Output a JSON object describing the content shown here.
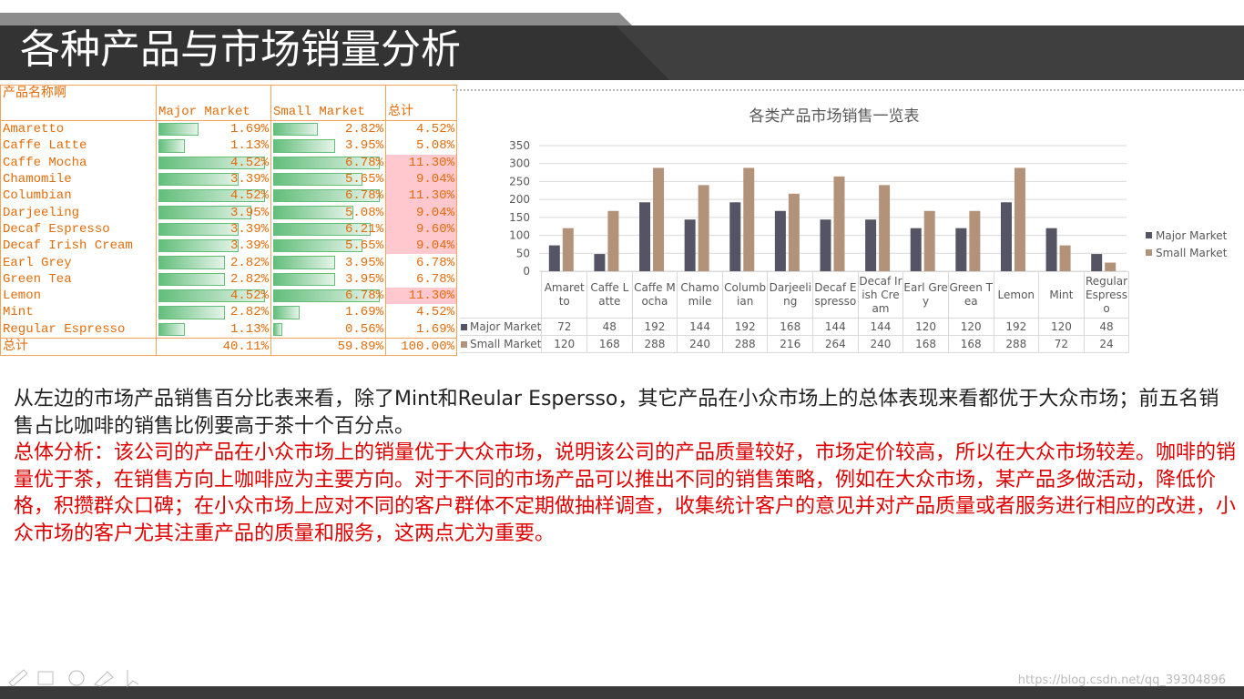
{
  "header": {
    "title": "各种产品与市场销量分析"
  },
  "table": {
    "columns": [
      {
        "label": "产品名称啊"
      },
      {
        "label": "Major Market",
        "data_bars": true
      },
      {
        "label": "Small Market",
        "data_bars": true
      },
      {
        "label": "总计"
      }
    ],
    "rows": [
      {
        "name": "Amaretto",
        "cells": [
          {
            "value": 1.69,
            "label": "1.69%"
          },
          {
            "value": 2.82,
            "label": "2.82%"
          },
          {
            "value": 4.52,
            "label": "4.52%"
          }
        ]
      },
      {
        "name": "Caffe Latte",
        "cells": [
          {
            "value": 1.13,
            "label": "1.13%"
          },
          {
            "value": 3.95,
            "label": "3.95%"
          },
          {
            "value": 5.08,
            "label": "5.08%"
          }
        ]
      },
      {
        "name": "Caffe Mocha",
        "cells": [
          {
            "value": 4.52,
            "label": "4.52%"
          },
          {
            "value": 6.78,
            "label": "6.78%"
          },
          {
            "value": 11.3,
            "label": "11.30%",
            "highlight": true
          }
        ]
      },
      {
        "name": "Chamomile",
        "cells": [
          {
            "value": 3.39,
            "label": "3.39%"
          },
          {
            "value": 5.65,
            "label": "5.65%"
          },
          {
            "value": 9.04,
            "label": "9.04%",
            "highlight": true
          }
        ]
      },
      {
        "name": "Columbian",
        "cells": [
          {
            "value": 4.52,
            "label": "4.52%"
          },
          {
            "value": 6.78,
            "label": "6.78%"
          },
          {
            "value": 11.3,
            "label": "11.30%",
            "highlight": true
          }
        ]
      },
      {
        "name": "Darjeeling",
        "cells": [
          {
            "value": 3.95,
            "label": "3.95%"
          },
          {
            "value": 5.08,
            "label": "5.08%"
          },
          {
            "value": 9.04,
            "label": "9.04%",
            "highlight": true
          }
        ]
      },
      {
        "name": "Decaf Espresso",
        "cells": [
          {
            "value": 3.39,
            "label": "3.39%"
          },
          {
            "value": 6.21,
            "label": "6.21%"
          },
          {
            "value": 9.6,
            "label": "9.60%",
            "highlight": true
          }
        ]
      },
      {
        "name": "Decaf Irish Cream",
        "cells": [
          {
            "value": 3.39,
            "label": "3.39%"
          },
          {
            "value": 5.65,
            "label": "5.65%"
          },
          {
            "value": 9.04,
            "label": "9.04%",
            "highlight": true
          }
        ]
      },
      {
        "name": "Earl Grey",
        "cells": [
          {
            "value": 2.82,
            "label": "2.82%"
          },
          {
            "value": 3.95,
            "label": "3.95%"
          },
          {
            "value": 6.78,
            "label": "6.78%"
          }
        ]
      },
      {
        "name": "Green Tea",
        "cells": [
          {
            "value": 2.82,
            "label": "2.82%"
          },
          {
            "value": 3.95,
            "label": "3.95%"
          },
          {
            "value": 6.78,
            "label": "6.78%"
          }
        ]
      },
      {
        "name": "Lemon",
        "cells": [
          {
            "value": 4.52,
            "label": "4.52%"
          },
          {
            "value": 6.78,
            "label": "6.78%"
          },
          {
            "value": 11.3,
            "label": "11.30%",
            "highlight": true
          }
        ]
      },
      {
        "name": "Mint",
        "cells": [
          {
            "value": 2.82,
            "label": "2.82%"
          },
          {
            "value": 1.69,
            "label": "1.69%"
          },
          {
            "value": 4.52,
            "label": "4.52%"
          }
        ]
      },
      {
        "name": "Regular Espresso",
        "cells": [
          {
            "value": 1.13,
            "label": "1.13%"
          },
          {
            "value": 0.56,
            "label": "0.56%"
          },
          {
            "value": 1.69,
            "label": "1.69%"
          }
        ]
      }
    ],
    "total": {
      "name": "总计",
      "cells": [
        {
          "value": 40.11,
          "label": "40.11%"
        },
        {
          "value": 59.89,
          "label": "59.89%"
        },
        {
          "value": 100,
          "label": "100.00%"
        }
      ]
    }
  },
  "chart_data": {
    "type": "bar",
    "title": "各类产品市场销售一览表",
    "categories": [
      "Amaretto",
      "Caffe Latte",
      "Caffe Mocha",
      "Chamomile",
      "Columbian",
      "Darjeeling",
      "Decaf Espresso",
      "Decaf Irish Cream",
      "Earl Grey",
      "Green Tea",
      "Lemon",
      "Mint",
      "Regular Espresso"
    ],
    "series": [
      {
        "name": "Major Market",
        "color": "#545464",
        "values": [
          72,
          48,
          192,
          144,
          192,
          168,
          144,
          144,
          120,
          120,
          192,
          120,
          48
        ]
      },
      {
        "name": "Small Market",
        "color": "#b3927a",
        "values": [
          120,
          168,
          288,
          240,
          288,
          216,
          264,
          240,
          168,
          168,
          288,
          72,
          24
        ]
      }
    ],
    "ylim": [
      0,
      350
    ],
    "yticks": [
      0,
      50,
      100,
      150,
      200,
      250,
      300,
      350
    ],
    "grid": true,
    "legend": "right",
    "data_table": true
  },
  "text": {
    "paragraph1": "从左边的市场产品销售百分比表来看，除了Mint和Reular Espersso，其它产品在小众市场上的总体表现来看都优于大众市场；前五名销售占比咖啡的销售比例要高于茶十个百分点。",
    "paragraph2": "总体分析：该公司的产品在小众市场上的销量优于大众市场，说明该公司的产品质量较好，市场定价较高，所以在大众市场较差。咖啡的销量优于茶，在销售方向上咖啡应为主要方向。对于不同的市场产品可以推出不同的销售策略，例如在大众市场，某产品多做活动，降低价格，积攒群众口碑；在小众市场上应对不同的客户群体不定期做抽样调查，收集统计客户的意见并对产品质量或者服务进行相应的改进，小众市场的客户尤其注重产品的质量和服务，这两点尤为重要。"
  },
  "watermark": "https://blog.csdn.net/qq_39304896"
}
